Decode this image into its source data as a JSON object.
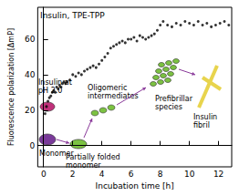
{
  "chart_data": {
    "type": "scatter",
    "title": "Insulin, TPE-TPP",
    "x_label": "Incubation time [h]",
    "y_label": "Fluorescence polarization [ΔmP]",
    "x": [
      0.1,
      0.2,
      0.3,
      0.4,
      0.5,
      0.6,
      0.7,
      0.8,
      0.9,
      1.0,
      1.1,
      1.2,
      1.3,
      1.4,
      1.5,
      1.6,
      1.8,
      2.0,
      2.2,
      2.4,
      2.6,
      2.8,
      3.0,
      3.2,
      3.4,
      3.6,
      3.8,
      4.0,
      4.2,
      4.4,
      4.6,
      4.8,
      5.0,
      5.2,
      5.4,
      5.6,
      5.8,
      6.0,
      6.2,
      6.4,
      6.6,
      6.8,
      7.0,
      7.2,
      7.4,
      7.6,
      7.8,
      8.0,
      8.2,
      8.5,
      8.8,
      9.1,
      9.4,
      9.7,
      10.0,
      10.3,
      10.6,
      10.9,
      11.2,
      11.5,
      11.8,
      12.1,
      12.4,
      12.7
    ],
    "values": [
      18,
      22,
      25,
      27,
      28,
      30,
      31,
      30,
      33,
      32,
      34,
      33,
      35,
      36,
      35,
      36,
      37,
      40,
      39,
      41,
      40,
      42,
      43,
      44,
      45,
      44,
      46,
      48,
      50,
      52,
      55,
      56,
      57,
      58,
      59,
      58,
      60,
      60,
      61,
      59,
      62,
      61,
      60,
      61,
      62,
      63,
      65,
      68,
      70,
      68,
      67,
      69,
      68,
      70,
      69,
      68,
      70,
      68,
      69,
      67,
      68,
      69,
      70,
      68
    ],
    "color": "#000000",
    "marker": "circle",
    "xlim": [
      -0.4,
      12.9
    ],
    "xticks": [
      0,
      2,
      4,
      6,
      8,
      10,
      12
    ],
    "ylim": [
      -12,
      78
    ],
    "yticks": [
      0,
      20,
      40,
      60
    ],
    "annotations": [
      "Insulin at pH 2.0",
      "Monomer",
      "Partially folded monomer",
      "Oligomeric intermediates",
      "Prefibrillar species",
      "Insulin fibril"
    ]
  }
}
